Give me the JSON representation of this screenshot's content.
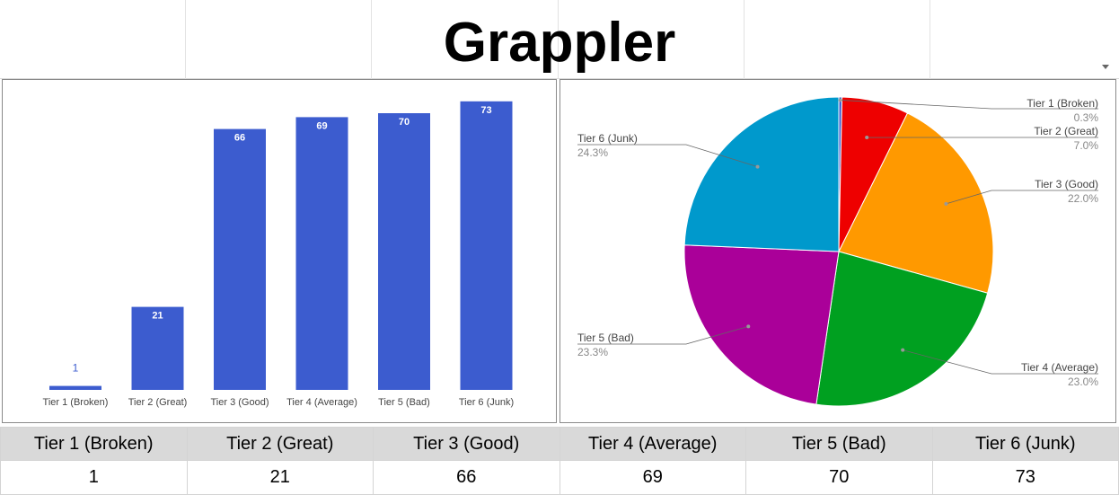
{
  "sheet": {
    "title": "Grappler"
  },
  "chart_data": [
    {
      "type": "bar",
      "categories": [
        "Tier 1 (Broken)",
        "Tier 2 (Great)",
        "Tier 3 (Good)",
        "Tier 4 (Average)",
        "Tier 5 (Bad)",
        "Tier 6 (Junk)"
      ],
      "values": [
        1,
        21,
        66,
        69,
        70,
        73
      ],
      "ylim": [
        0,
        75
      ],
      "grid": false,
      "legend": "none",
      "color": "#3c5ccf"
    },
    {
      "type": "pie",
      "labels": [
        "Tier 1 (Broken)",
        "Tier 2 (Great)",
        "Tier 3 (Good)",
        "Tier 4 (Average)",
        "Tier 5 (Bad)",
        "Tier 6 (Junk)"
      ],
      "values": [
        1,
        21,
        66,
        69,
        70,
        73
      ],
      "percent_labels": [
        "0.3%",
        "7.0%",
        "22.0%",
        "23.0%",
        "23.3%",
        "24.3%"
      ],
      "colors": [
        "#3c5ccf",
        "#ee0000",
        "#ff9900",
        "#00a020",
        "#aa0099",
        "#0099cc"
      ],
      "legend": "labeled slices"
    }
  ],
  "table": {
    "headers": [
      "Tier 1 (Broken)",
      "Tier 2 (Great)",
      "Tier 3 (Good)",
      "Tier 4 (Average)",
      "Tier 5 (Bad)",
      "Tier 6 (Junk)"
    ],
    "values": [
      "1",
      "21",
      "66",
      "69",
      "70",
      "73"
    ]
  }
}
